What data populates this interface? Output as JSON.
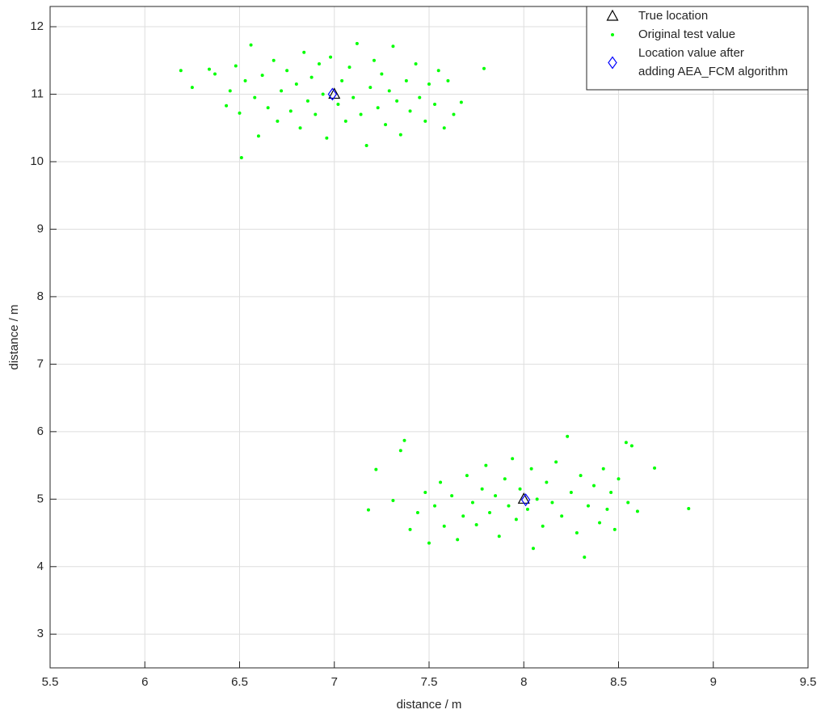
{
  "chart_data": {
    "type": "scatter",
    "xlabel": "distance / m",
    "ylabel": "distance / m",
    "xlim": [
      5.5,
      9.5
    ],
    "ylim": [
      2.5,
      12.3
    ],
    "xticks": [
      5.5,
      6,
      6.5,
      7,
      7.5,
      8,
      8.5,
      9,
      9.5
    ],
    "yticks": [
      3,
      4,
      5,
      6,
      7,
      8,
      9,
      10,
      11,
      12
    ],
    "grid": true,
    "legend": "upper right",
    "series": [
      {
        "name": "True location",
        "color": "#000000",
        "marker": "triangle",
        "x": [
          7,
          8
        ],
        "values": [
          11,
          5
        ]
      },
      {
        "name": "Original test value",
        "color": "#00ff00",
        "marker": "dot",
        "x": [
          6.19,
          6.25,
          6.34,
          6.37,
          6.43,
          6.45,
          6.48,
          6.5,
          6.51,
          6.53,
          6.56,
          6.58,
          6.6,
          6.62,
          6.65,
          6.68,
          6.7,
          6.72,
          6.75,
          6.77,
          6.8,
          6.82,
          6.84,
          6.86,
          6.88,
          6.9,
          6.92,
          6.94,
          6.96,
          6.98,
          7.02,
          7.04,
          7.06,
          7.08,
          7.1,
          7.12,
          7.14,
          7.17,
          7.19,
          7.21,
          7.23,
          7.25,
          7.27,
          7.29,
          7.31,
          7.33,
          7.35,
          7.38,
          7.4,
          7.43,
          7.45,
          7.48,
          7.5,
          7.53,
          7.55,
          7.58,
          7.6,
          7.63,
          7.67,
          7.79,
          7.18,
          7.22,
          7.31,
          7.35,
          7.37,
          7.4,
          7.44,
          7.48,
          7.5,
          7.53,
          7.56,
          7.58,
          7.62,
          7.65,
          7.68,
          7.7,
          7.73,
          7.75,
          7.78,
          7.8,
          7.82,
          7.85,
          7.87,
          7.9,
          7.92,
          7.94,
          7.96,
          7.98,
          8.02,
          8.04,
          8.05,
          8.07,
          8.1,
          8.12,
          8.15,
          8.17,
          8.2,
          8.23,
          8.25,
          8.28,
          8.3,
          8.32,
          8.34,
          8.37,
          8.4,
          8.42,
          8.44,
          8.46,
          8.48,
          8.5,
          8.54,
          8.55,
          8.57,
          8.6,
          8.69,
          8.87
        ],
        "values": [
          11.35,
          11.1,
          11.37,
          11.3,
          10.83,
          11.05,
          11.42,
          10.72,
          10.06,
          11.2,
          11.73,
          10.95,
          10.38,
          11.28,
          10.8,
          11.5,
          10.6,
          11.05,
          11.35,
          10.75,
          11.15,
          10.5,
          11.62,
          10.9,
          11.25,
          10.7,
          11.45,
          11.0,
          10.35,
          11.55,
          10.85,
          11.2,
          10.6,
          11.4,
          10.95,
          11.75,
          10.7,
          10.24,
          11.1,
          11.5,
          10.8,
          11.3,
          10.55,
          11.05,
          11.71,
          10.9,
          10.4,
          11.2,
          10.75,
          11.45,
          10.95,
          10.6,
          11.15,
          10.85,
          11.35,
          10.5,
          11.2,
          10.7,
          10.88,
          11.38,
          4.84,
          5.44,
          4.98,
          5.72,
          5.87,
          4.55,
          4.8,
          5.1,
          4.35,
          4.9,
          5.25,
          4.6,
          5.05,
          4.4,
          4.75,
          5.35,
          4.95,
          4.62,
          5.15,
          5.5,
          4.8,
          5.05,
          4.45,
          5.3,
          4.9,
          5.6,
          4.7,
          5.15,
          4.85,
          5.45,
          4.27,
          5.0,
          4.6,
          5.25,
          4.95,
          5.55,
          4.75,
          5.93,
          5.1,
          4.5,
          5.35,
          4.14,
          4.9,
          5.2,
          4.65,
          5.45,
          4.85,
          5.1,
          4.55,
          5.3,
          5.84,
          4.95,
          5.79,
          4.82,
          5.46,
          4.86
        ]
      },
      {
        "name": "Location value after\nadding AEA_FCM algorithm",
        "color": "#0000ff",
        "marker": "diamond",
        "x": [
          6.99,
          8.01
        ],
        "values": [
          11.0,
          4.99
        ]
      }
    ]
  }
}
